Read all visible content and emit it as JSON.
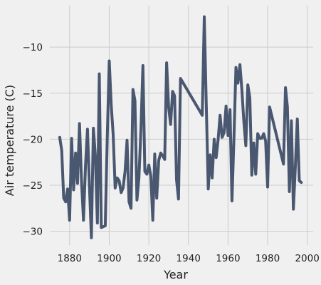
{
  "chart_data": {
    "type": "line",
    "xlabel": "Year",
    "ylabel": "Air temperature (C)",
    "xlim": [
      1870,
      2003
    ],
    "ylim": [
      -31.5,
      -5.5
    ],
    "xticks": [
      1880,
      1900,
      1920,
      1940,
      1960,
      1980,
      2000
    ],
    "yticks": [
      -30,
      -25,
      -20,
      -15,
      -10
    ],
    "grid": true,
    "line_color": "#4a5770",
    "background_color": "#f0f0f0",
    "grid_color": "#cbcbcb",
    "series": [
      {
        "x": [
          1875,
          1876,
          1877,
          1878,
          1879,
          1880,
          1881,
          1882,
          1883,
          1884,
          1885,
          1886,
          1887,
          1888,
          1889,
          1890,
          1891,
          1892,
          1893,
          1894,
          1895,
          1896,
          1897,
          1898,
          1899,
          1900,
          1901,
          1902,
          1903,
          1904,
          1905,
          1906,
          1907,
          1908,
          1909,
          1910,
          1911,
          1912,
          1913,
          1914,
          1915,
          1916,
          1917,
          1918,
          1919,
          1920,
          1921,
          1922,
          1923,
          1924,
          1925,
          1926,
          1927,
          1928,
          1929,
          1930,
          1931,
          1932,
          1933,
          1934,
          1935,
          1936,
          1947,
          1948,
          1949,
          1950,
          1951,
          1952,
          1953,
          1954,
          1955,
          1956,
          1957,
          1958,
          1959,
          1960,
          1961,
          1962,
          1963,
          1964,
          1965,
          1966,
          1967,
          1968,
          1969,
          1970,
          1971,
          1972,
          1973,
          1974,
          1975,
          1976,
          1977,
          1978,
          1979,
          1980,
          1981,
          1988,
          1989,
          1990,
          1991,
          1992,
          1993,
          1994,
          1995,
          1996,
          1997
        ],
        "y": [
          -19.8,
          -21.2,
          -26.4,
          -26.8,
          -25.4,
          -28.8,
          -19.9,
          -25.5,
          -21.5,
          -24.8,
          -18.3,
          -24.5,
          -28.8,
          -22.9,
          -18.9,
          -25.0,
          -30.7,
          -18.8,
          -21.8,
          -29.1,
          -12.9,
          -29.6,
          -29.5,
          -29.4,
          -19.8,
          -11.5,
          -16.2,
          -19.5,
          -25.3,
          -24.2,
          -24.5,
          -25.8,
          -25.3,
          -23.5,
          -20.1,
          -26.8,
          -27.5,
          -14.6,
          -15.8,
          -26.6,
          -24.2,
          -18.9,
          -12.0,
          -23.5,
          -23.8,
          -22.8,
          -24.0,
          -28.8,
          -21.6,
          -26.4,
          -22.3,
          -21.5,
          -21.8,
          -22.2,
          -11.7,
          -16.5,
          -18.4,
          -14.8,
          -15.3,
          -24.4,
          -26.5,
          -13.4,
          -17.4,
          -6.7,
          -16.2,
          -25.4,
          -21.7,
          -24.2,
          -20.0,
          -22.0,
          -20.0,
          -17.4,
          -19.8,
          -19.3,
          -16.4,
          -19.6,
          -16.8,
          -26.7,
          -19.9,
          -12.2,
          -13.9,
          -11.9,
          -14.6,
          -18.1,
          -20.7,
          -14.1,
          -15.5,
          -23.9,
          -20.4,
          -23.8,
          -19.4,
          -19.9,
          -19.9,
          -19.4,
          -20.2,
          -25.2,
          -16.5,
          -22.7,
          -14.4,
          -16.5,
          -25.7,
          -18.0,
          -27.6,
          -22.9,
          -17.8,
          -24.5,
          -24.7
        ]
      }
    ]
  }
}
